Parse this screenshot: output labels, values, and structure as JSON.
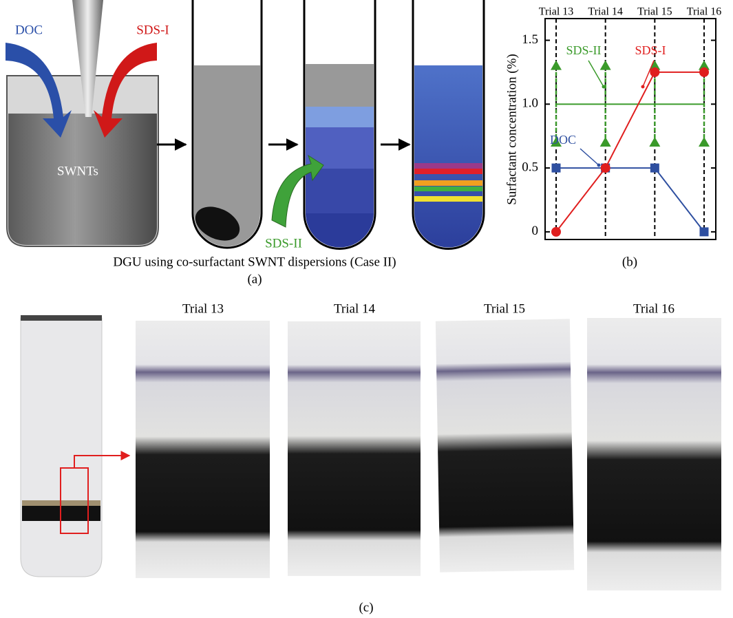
{
  "panel_a": {
    "labels": {
      "doc": "DOC",
      "sds_i": "SDS-I",
      "swnts": "SWNTs",
      "sds_ii": "SDS-II"
    },
    "caption": "DGU using co-surfactant SWNT dispersions (Case II)",
    "label": "(a)"
  },
  "chart_data": {
    "type": "line",
    "label": "(b)",
    "categories": [
      "Trial 13",
      "Trial 14",
      "Trial 15",
      "Trial 16"
    ],
    "y_label": "Surfactant concentration (%)",
    "ylim": [
      -0.06,
      1.67
    ],
    "yticks": [
      0,
      0.5,
      {
        "value": 1,
        "label": "1.0"
      },
      1.5
    ],
    "series": [
      {
        "name": "SDS-I",
        "color": "#e01e1e",
        "marker": "circle",
        "values": [
          0,
          0.5,
          1.25,
          1.25
        ]
      },
      {
        "name": "DOC",
        "color": "#2e4fa0",
        "marker": "square",
        "values": [
          0.5,
          0.5,
          0.5,
          0
        ]
      },
      {
        "name": "SDS-II",
        "color": "#3a9a2a",
        "marker": "triangle",
        "values": [
          1,
          1,
          1,
          1
        ],
        "errors": [
          0.3,
          0.3,
          0.3,
          0.3
        ]
      }
    ]
  },
  "panel_c": {
    "trials": [
      "Trial 13",
      "Trial 14",
      "Trial 15",
      "Trial 16"
    ],
    "label": "(c)"
  }
}
